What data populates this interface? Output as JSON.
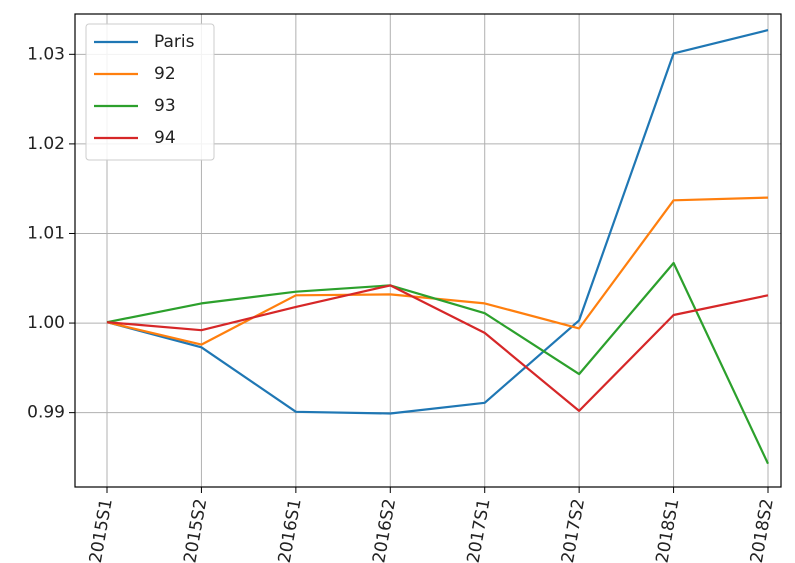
{
  "chart_data": {
    "type": "line",
    "title": "",
    "xlabel": "",
    "ylabel": "",
    "categories": [
      "2015S1",
      "2015S2",
      "2016S1",
      "2016S2",
      "2017S1",
      "2017S2",
      "2018S1",
      "2018S2"
    ],
    "y_ticks": [
      "0.99",
      "1.00",
      "1.01",
      "1.02",
      "1.03"
    ],
    "ylim": [
      0.9817,
      1.0345
    ],
    "grid": true,
    "legend_position": "top-left",
    "series": [
      {
        "name": "Paris",
        "color": "#1f77b4",
        "values": [
          1.0001,
          0.9973,
          0.9901,
          0.9899,
          0.9911,
          1.0003,
          1.0301,
          1.0327
        ]
      },
      {
        "name": "92",
        "color": "#ff7f0e",
        "values": [
          1.0001,
          0.9976,
          1.0031,
          1.0032,
          1.0022,
          0.9994,
          1.0137,
          1.014
        ]
      },
      {
        "name": "93",
        "color": "#2ca02c",
        "values": [
          1.0001,
          1.0022,
          1.0035,
          1.0042,
          1.0011,
          0.9943,
          1.0067,
          0.9843
        ]
      },
      {
        "name": "94",
        "color": "#d62728",
        "values": [
          1.0001,
          0.9992,
          1.0018,
          1.0042,
          0.9989,
          0.9902,
          1.0009,
          1.0031
        ]
      }
    ]
  }
}
